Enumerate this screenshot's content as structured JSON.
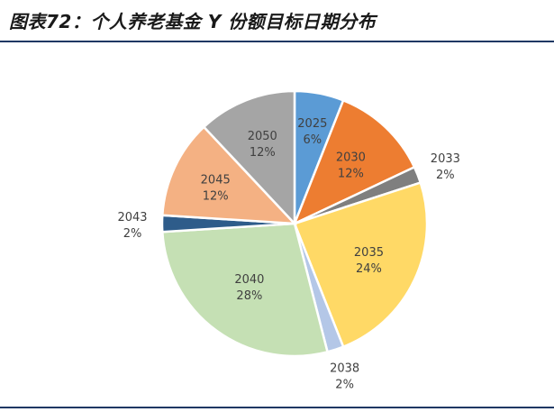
{
  "title": "图表72：个人养老基金 Y 份额目标日期分布",
  "chart_data": {
    "type": "pie",
    "title": "图表72：个人养老基金 Y 份额目标日期分布",
    "slices": [
      {
        "label": "2025",
        "value": 6,
        "pct": "6%",
        "color": "#5b9bd5"
      },
      {
        "label": "2030",
        "value": 12,
        "pct": "12%",
        "color": "#ed7d31"
      },
      {
        "label": "2033",
        "value": 2,
        "pct": "2%",
        "color": "#7f7f7f"
      },
      {
        "label": "2035",
        "value": 24,
        "pct": "24%",
        "color": "#ffd966"
      },
      {
        "label": "2038",
        "value": 2,
        "pct": "2%",
        "color": "#b4c7e7"
      },
      {
        "label": "2040",
        "value": 28,
        "pct": "28%",
        "color": "#c5e0b4"
      },
      {
        "label": "2043",
        "value": 2,
        "pct": "2%",
        "color": "#2e5c8a"
      },
      {
        "label": "2045",
        "value": 12,
        "pct": "12%",
        "color": "#f4b183"
      },
      {
        "label": "2050",
        "value": 12,
        "pct": "12%",
        "color": "#a5a5a5"
      }
    ]
  }
}
